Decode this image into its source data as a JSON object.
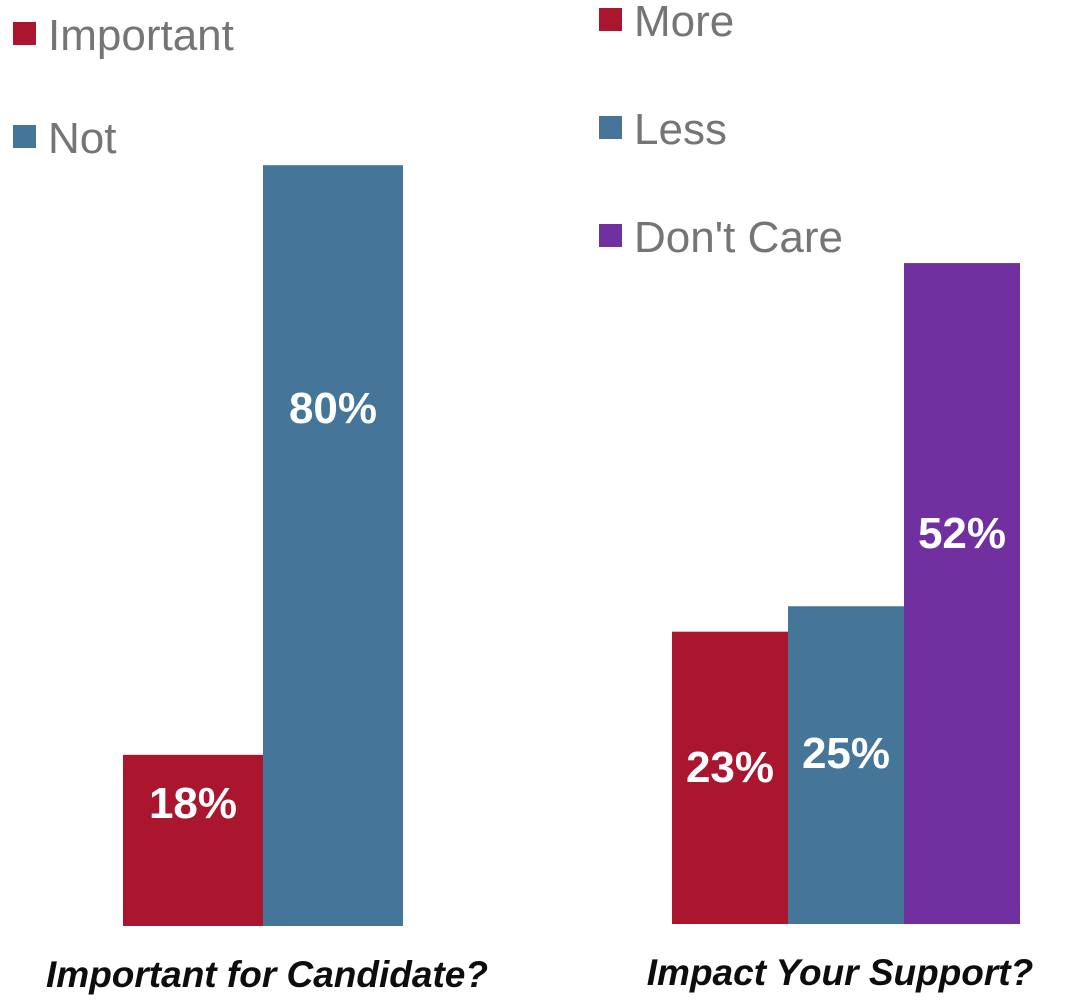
{
  "chart_data": [
    {
      "type": "bar",
      "title": "Important for Candidate?",
      "series": [
        {
          "name": "Important",
          "value": 18,
          "label": "18%",
          "color": "#ab162f"
        },
        {
          "name": "Not",
          "value": 80,
          "label": "80%",
          "color": "#457598"
        }
      ],
      "legend_position": "top-left",
      "grid": false
    },
    {
      "type": "bar",
      "title": "Impact Your Support?",
      "series": [
        {
          "name": "More",
          "value": 23,
          "label": "23%",
          "color": "#ab162f"
        },
        {
          "name": "Less",
          "value": 25,
          "label": "25%",
          "color": "#457598"
        },
        {
          "name": "Don't Care",
          "value": 52,
          "label": "52%",
          "color": "#7030a0"
        }
      ],
      "legend_position": "top-left",
      "grid": false
    }
  ],
  "colors": {
    "legend_text": "#757575",
    "bar_label": "#ffffff",
    "title_text": "#0d0d0d"
  }
}
